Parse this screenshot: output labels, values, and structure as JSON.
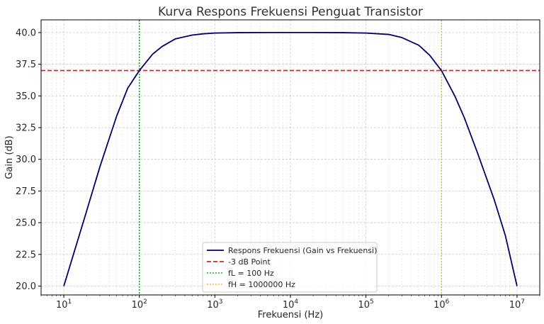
{
  "chart_data": {
    "type": "line",
    "title": "Kurva Respons Frekuensi Penguat Transistor",
    "xlabel": "Frekuensi (Hz)",
    "ylabel": "Gain (dB)",
    "x_scale": "log",
    "xlim": [
      5,
      20000000
    ],
    "ylim": [
      19.3,
      41.0
    ],
    "x_ticks": [
      {
        "value": 10,
        "base": "10",
        "exp": "1"
      },
      {
        "value": 100,
        "base": "10",
        "exp": "2"
      },
      {
        "value": 1000,
        "base": "10",
        "exp": "3"
      },
      {
        "value": 10000,
        "base": "10",
        "exp": "4"
      },
      {
        "value": 100000,
        "base": "10",
        "exp": "5"
      },
      {
        "value": 1000000,
        "base": "10",
        "exp": "6"
      },
      {
        "value": 10000000,
        "base": "10",
        "exp": "7"
      }
    ],
    "y_ticks": [
      "20.0",
      "22.5",
      "25.0",
      "27.5",
      "30.0",
      "32.5",
      "35.0",
      "37.5",
      "40.0"
    ],
    "grid": true,
    "legend_position": "bottom-center",
    "series": [
      {
        "name": "Respons Frekuensi (Gain vs Frekuensi)",
        "color": "#000066",
        "style": "solid",
        "x": [
          10,
          20,
          30,
          50,
          70,
          100,
          150,
          200,
          300,
          500,
          700,
          1000,
          2000,
          5000,
          10000,
          20000,
          50000,
          100000,
          200000,
          300000,
          500000,
          700000,
          1000000,
          1500000,
          2000000,
          3000000,
          5000000,
          7000000,
          10000000
        ],
        "y": [
          20.0,
          25.9,
          29.4,
          33.4,
          35.6,
          37.0,
          38.3,
          38.9,
          39.5,
          39.8,
          39.9,
          39.96,
          39.99,
          40.0,
          40.0,
          40.0,
          39.99,
          39.96,
          39.85,
          39.6,
          39.0,
          38.2,
          37.0,
          35.0,
          33.3,
          30.5,
          26.8,
          24.0,
          20.0
        ]
      },
      {
        "name": "-3 dB Point",
        "color": "#d62728",
        "style": "dashed",
        "y_const": 37.0
      },
      {
        "name": "fL = 100 Hz",
        "color": "#2ca02c",
        "style": "dotted",
        "x_const": 100
      },
      {
        "name": "fH = 1000000 Hz",
        "color": "#ffa500",
        "style": "dotted",
        "x_const": 1000000
      }
    ]
  }
}
